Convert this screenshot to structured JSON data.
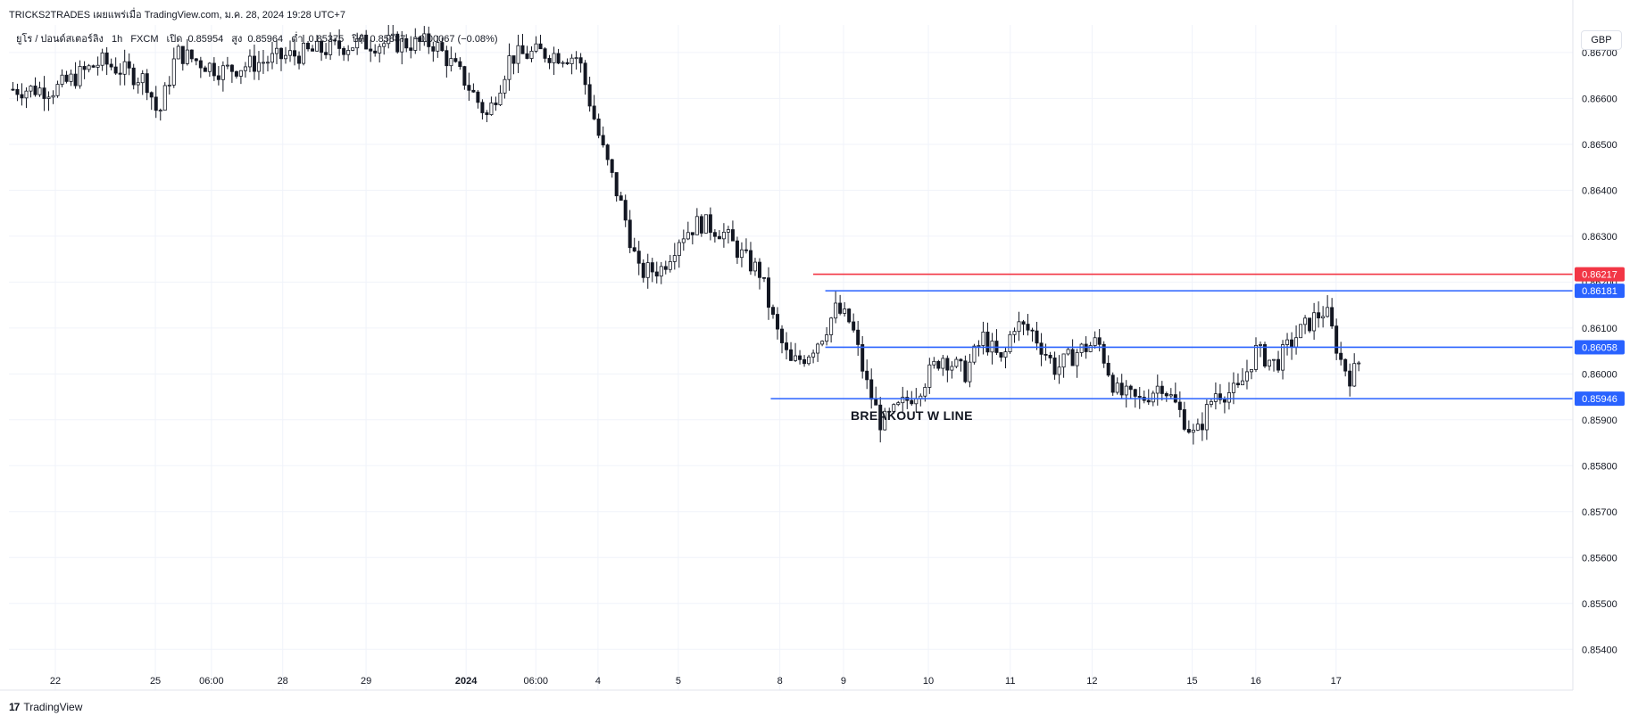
{
  "header": {
    "text": "TRICKS2TRADES เผยแพร่เมื่อ TradingView.com, ม.ค. 28, 2024 19:28 UTC+7"
  },
  "legend": {
    "symbol": "ยูโร / ปอนด์สเตอร์ลิง",
    "interval": "1h",
    "source": "FXCM",
    "open_label": "เปิด",
    "open": "0.85954",
    "high_label": "สูง",
    "high": "0.85964",
    "low_label": "ต่ำ",
    "low": "0.85375",
    "close_label": "ปิด",
    "close": "0.85887",
    "change": "−0.00067 (−0.08%)"
  },
  "currency": "GBP",
  "annotation": "BREAKOUT W LINE",
  "footer": {
    "logo_mark": "17",
    "logo_text": "TradingView"
  },
  "colors": {
    "resistance": "#f23645",
    "level": "#2962ff",
    "candle": "#131722",
    "grid": "#f0f3fa"
  },
  "chart_data": {
    "type": "candlestick",
    "title": "",
    "ylim": [
      0.8535,
      0.8676
    ],
    "y_ticks": [
      "0.86700",
      "0.86600",
      "0.86500",
      "0.86400",
      "0.86300",
      "0.86200",
      "0.86100",
      "0.86000",
      "0.85900",
      "0.85800",
      "0.85700",
      "0.85600",
      "0.85500",
      "0.85400"
    ],
    "x_ticks": [
      {
        "label": "22",
        "pos": 0.0
      },
      {
        "label": "25",
        "pos": 0.066
      },
      {
        "label": "06:00",
        "pos": 0.103
      },
      {
        "label": "28",
        "pos": 0.15
      },
      {
        "label": "29",
        "pos": 0.205
      },
      {
        "label": "2024",
        "pos": 0.271
      },
      {
        "label": "06:00",
        "pos": 0.317
      },
      {
        "label": "4",
        "pos": 0.358
      },
      {
        "label": "5",
        "pos": 0.411
      },
      {
        "label": "8",
        "pos": 0.478
      },
      {
        "label": "9",
        "pos": 0.52
      },
      {
        "label": "10",
        "pos": 0.576
      },
      {
        "label": "11",
        "pos": 0.63
      },
      {
        "label": "12",
        "pos": 0.684
      },
      {
        "label": "15",
        "pos": 0.75
      },
      {
        "label": "16",
        "pos": 0.792
      },
      {
        "label": "17",
        "pos": 0.845
      }
    ],
    "price_trajectory": [
      [
        0.0,
        0.8662
      ],
      [
        0.03,
        0.8668
      ],
      [
        0.06,
        0.8664
      ],
      [
        0.068,
        0.8656
      ],
      [
        0.08,
        0.867
      ],
      [
        0.11,
        0.8666
      ],
      [
        0.15,
        0.8669
      ],
      [
        0.2,
        0.8672
      ],
      [
        0.25,
        0.8672
      ],
      [
        0.27,
        0.8664
      ],
      [
        0.285,
        0.8656
      ],
      [
        0.3,
        0.8669
      ],
      [
        0.32,
        0.867
      ],
      [
        0.345,
        0.8669
      ],
      [
        0.36,
        0.865
      ],
      [
        0.375,
        0.8635
      ],
      [
        0.385,
        0.8622
      ],
      [
        0.4,
        0.8623
      ],
      [
        0.412,
        0.863
      ],
      [
        0.425,
        0.8633
      ],
      [
        0.44,
        0.8631
      ],
      [
        0.455,
        0.8625
      ],
      [
        0.465,
        0.8622
      ],
      [
        0.475,
        0.861
      ],
      [
        0.485,
        0.8602
      ],
      [
        0.495,
        0.8604
      ],
      [
        0.505,
        0.8608
      ],
      [
        0.515,
        0.8614
      ],
      [
        0.525,
        0.8611
      ],
      [
        0.535,
        0.8598
      ],
      [
        0.545,
        0.8589
      ],
      [
        0.555,
        0.8592
      ],
      [
        0.57,
        0.8597
      ],
      [
        0.585,
        0.8604
      ],
      [
        0.6,
        0.86
      ],
      [
        0.612,
        0.8608
      ],
      [
        0.625,
        0.8602
      ],
      [
        0.632,
        0.8611
      ],
      [
        0.645,
        0.8609
      ],
      [
        0.66,
        0.8601
      ],
      [
        0.675,
        0.8605
      ],
      [
        0.688,
        0.8607
      ],
      [
        0.7,
        0.8596
      ],
      [
        0.715,
        0.8594
      ],
      [
        0.73,
        0.8598
      ],
      [
        0.745,
        0.859
      ],
      [
        0.752,
        0.8586
      ],
      [
        0.765,
        0.8596
      ],
      [
        0.78,
        0.8596
      ],
      [
        0.792,
        0.8605
      ],
      [
        0.805,
        0.8602
      ],
      [
        0.818,
        0.8608
      ],
      [
        0.83,
        0.8612
      ],
      [
        0.838,
        0.8614
      ],
      [
        0.848,
        0.8603
      ],
      [
        0.855,
        0.8599
      ],
      [
        0.862,
        0.8604
      ]
    ],
    "price_labels": [
      {
        "value": "0.86217",
        "price": 0.86217,
        "color": "resistance"
      },
      {
        "value": "0.86181",
        "price": 0.86181,
        "color": "level"
      },
      {
        "value": "0.86058",
        "price": 0.86058,
        "color": "level"
      },
      {
        "value": "0.85946",
        "price": 0.85946,
        "color": "level"
      }
    ],
    "horizontal_lines": [
      {
        "price": 0.86217,
        "from": 0.5,
        "to": 1.0,
        "color": "resistance"
      },
      {
        "price": 0.86181,
        "from": 0.508,
        "to": 1.0,
        "color": "level"
      },
      {
        "price": 0.86058,
        "from": 0.508,
        "to": 1.0,
        "color": "level"
      },
      {
        "price": 0.85946,
        "from": 0.472,
        "to": 1.0,
        "color": "level"
      }
    ]
  }
}
